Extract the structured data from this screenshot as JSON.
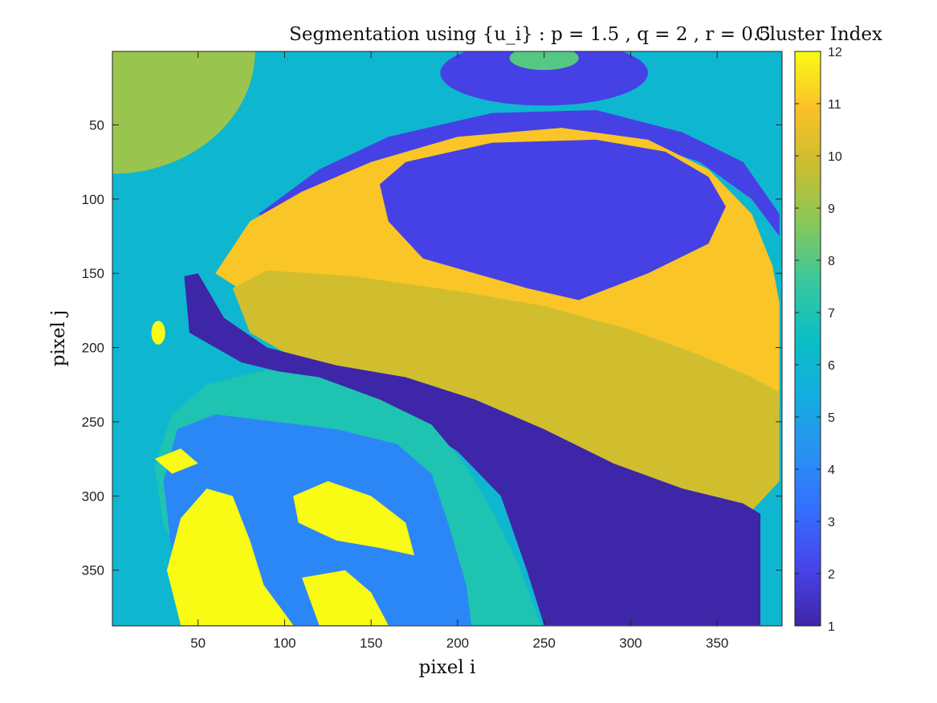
{
  "chart_data": {
    "type": "heatmap",
    "title": "Segmentation using {u_i} : p = 1.5 , q = 2 , r = 0.5",
    "xlabel": "pixel i",
    "ylabel": "pixel j",
    "xlim": [
      0.5,
      387.5
    ],
    "ylim": [
      0.5,
      387.5
    ],
    "y_reversed": true,
    "x_ticks": [
      50,
      100,
      150,
      200,
      250,
      300,
      350
    ],
    "y_ticks": [
      50,
      100,
      150,
      200,
      250,
      300,
      350
    ],
    "colorbar": {
      "title": "Cluster Index",
      "range": [
        1,
        12
      ],
      "ticks": [
        1,
        2,
        3,
        4,
        5,
        6,
        7,
        8,
        9,
        10,
        11,
        12
      ],
      "colormap": "parula"
    },
    "background_cluster": 6,
    "regions": [
      {
        "cluster": 9,
        "shape": "ellipse",
        "center": [
          0,
          0
        ],
        "radii": [
          83,
          83
        ]
      },
      {
        "cluster": 2,
        "shape": "ellipse",
        "center": [
          250,
          15
        ],
        "radii": [
          60,
          22
        ]
      },
      {
        "cluster": 8,
        "shape": "ellipse",
        "center": [
          250,
          5
        ],
        "radii": [
          20,
          8
        ]
      },
      {
        "cluster": 2,
        "shape": "polygon",
        "points": [
          [
            85,
            110
          ],
          [
            120,
            80
          ],
          [
            160,
            58
          ],
          [
            220,
            42
          ],
          [
            280,
            40
          ],
          [
            330,
            55
          ],
          [
            365,
            75
          ],
          [
            386,
            110
          ],
          [
            386,
            125
          ],
          [
            370,
            100
          ],
          [
            340,
            75
          ],
          [
            300,
            60
          ],
          [
            250,
            55
          ],
          [
            200,
            60
          ],
          [
            160,
            72
          ],
          [
            130,
            95
          ],
          [
            95,
            120
          ]
        ]
      },
      {
        "cluster": 11,
        "shape": "polygon",
        "points": [
          [
            60,
            150
          ],
          [
            80,
            115
          ],
          [
            110,
            95
          ],
          [
            150,
            75
          ],
          [
            200,
            58
          ],
          [
            260,
            52
          ],
          [
            310,
            60
          ],
          [
            345,
            80
          ],
          [
            370,
            110
          ],
          [
            382,
            145
          ],
          [
            386,
            170
          ],
          [
            386,
            240
          ],
          [
            370,
            255
          ],
          [
            330,
            240
          ],
          [
            280,
            215
          ],
          [
            240,
            205
          ],
          [
            180,
            195
          ],
          [
            120,
            180
          ],
          [
            80,
            165
          ]
        ]
      },
      {
        "cluster": 2,
        "shape": "polygon",
        "points": [
          [
            155,
            90
          ],
          [
            170,
            75
          ],
          [
            220,
            62
          ],
          [
            280,
            60
          ],
          [
            320,
            68
          ],
          [
            345,
            85
          ],
          [
            355,
            105
          ],
          [
            345,
            130
          ],
          [
            310,
            150
          ],
          [
            270,
            168
          ],
          [
            240,
            160
          ],
          [
            210,
            150
          ],
          [
            180,
            140
          ],
          [
            160,
            115
          ]
        ]
      },
      {
        "cluster": 10,
        "shape": "polygon",
        "points": [
          [
            70,
            160
          ],
          [
            90,
            148
          ],
          [
            140,
            152
          ],
          [
            200,
            162
          ],
          [
            250,
            172
          ],
          [
            300,
            188
          ],
          [
            340,
            205
          ],
          [
            370,
            220
          ],
          [
            386,
            230
          ],
          [
            386,
            290
          ],
          [
            370,
            310
          ],
          [
            330,
            303
          ],
          [
            280,
            290
          ],
          [
            240,
            270
          ],
          [
            200,
            245
          ],
          [
            150,
            225
          ],
          [
            110,
            210
          ],
          [
            80,
            190
          ]
        ]
      },
      {
        "cluster": 1,
        "shape": "polygon",
        "points": [
          [
            42,
            152
          ],
          [
            50,
            150
          ],
          [
            65,
            180
          ],
          [
            90,
            200
          ],
          [
            130,
            212
          ],
          [
            170,
            220
          ],
          [
            210,
            235
          ],
          [
            250,
            255
          ],
          [
            290,
            278
          ],
          [
            330,
            295
          ],
          [
            365,
            305
          ],
          [
            375,
            312
          ],
          [
            375,
            387
          ],
          [
            250,
            387
          ],
          [
            240,
            350
          ],
          [
            225,
            300
          ],
          [
            200,
            270
          ],
          [
            160,
            240
          ],
          [
            110,
            220
          ],
          [
            75,
            210
          ],
          [
            45,
            190
          ]
        ]
      },
      {
        "cluster": 7,
        "shape": "polygon",
        "points": [
          [
            35,
            245
          ],
          [
            55,
            225
          ],
          [
            90,
            215
          ],
          [
            120,
            220
          ],
          [
            155,
            235
          ],
          [
            185,
            252
          ],
          [
            205,
            280
          ],
          [
            220,
            310
          ],
          [
            235,
            345
          ],
          [
            248,
            387
          ],
          [
            150,
            387
          ],
          [
            90,
            387
          ],
          [
            55,
            370
          ],
          [
            30,
            320
          ],
          [
            25,
            280
          ]
        ]
      },
      {
        "cluster": 4,
        "shape": "polygon",
        "points": [
          [
            38,
            255
          ],
          [
            60,
            245
          ],
          [
            95,
            250
          ],
          [
            130,
            255
          ],
          [
            165,
            265
          ],
          [
            185,
            285
          ],
          [
            195,
            320
          ],
          [
            205,
            360
          ],
          [
            208,
            387
          ],
          [
            140,
            387
          ],
          [
            95,
            387
          ],
          [
            60,
            370
          ],
          [
            35,
            340
          ],
          [
            30,
            290
          ]
        ]
      },
      {
        "cluster": 12,
        "shape": "polygon",
        "points": [
          [
            40,
            315
          ],
          [
            55,
            295
          ],
          [
            70,
            300
          ],
          [
            80,
            330
          ],
          [
            88,
            360
          ],
          [
            105,
            387
          ],
          [
            40,
            387
          ],
          [
            32,
            350
          ]
        ]
      },
      {
        "cluster": 12,
        "shape": "polygon",
        "points": [
          [
            105,
            300
          ],
          [
            125,
            290
          ],
          [
            150,
            300
          ],
          [
            170,
            318
          ],
          [
            175,
            340
          ],
          [
            155,
            335
          ],
          [
            130,
            330
          ],
          [
            108,
            318
          ]
        ]
      },
      {
        "cluster": 12,
        "shape": "polygon",
        "points": [
          [
            25,
            275
          ],
          [
            40,
            268
          ],
          [
            50,
            278
          ],
          [
            35,
            285
          ]
        ]
      },
      {
        "cluster": 12,
        "shape": "ellipse",
        "center": [
          27,
          190
        ],
        "radii": [
          4,
          8
        ]
      },
      {
        "cluster": 12,
        "shape": "polygon",
        "points": [
          [
            110,
            355
          ],
          [
            135,
            350
          ],
          [
            150,
            365
          ],
          [
            160,
            387
          ],
          [
            120,
            387
          ]
        ]
      }
    ]
  }
}
